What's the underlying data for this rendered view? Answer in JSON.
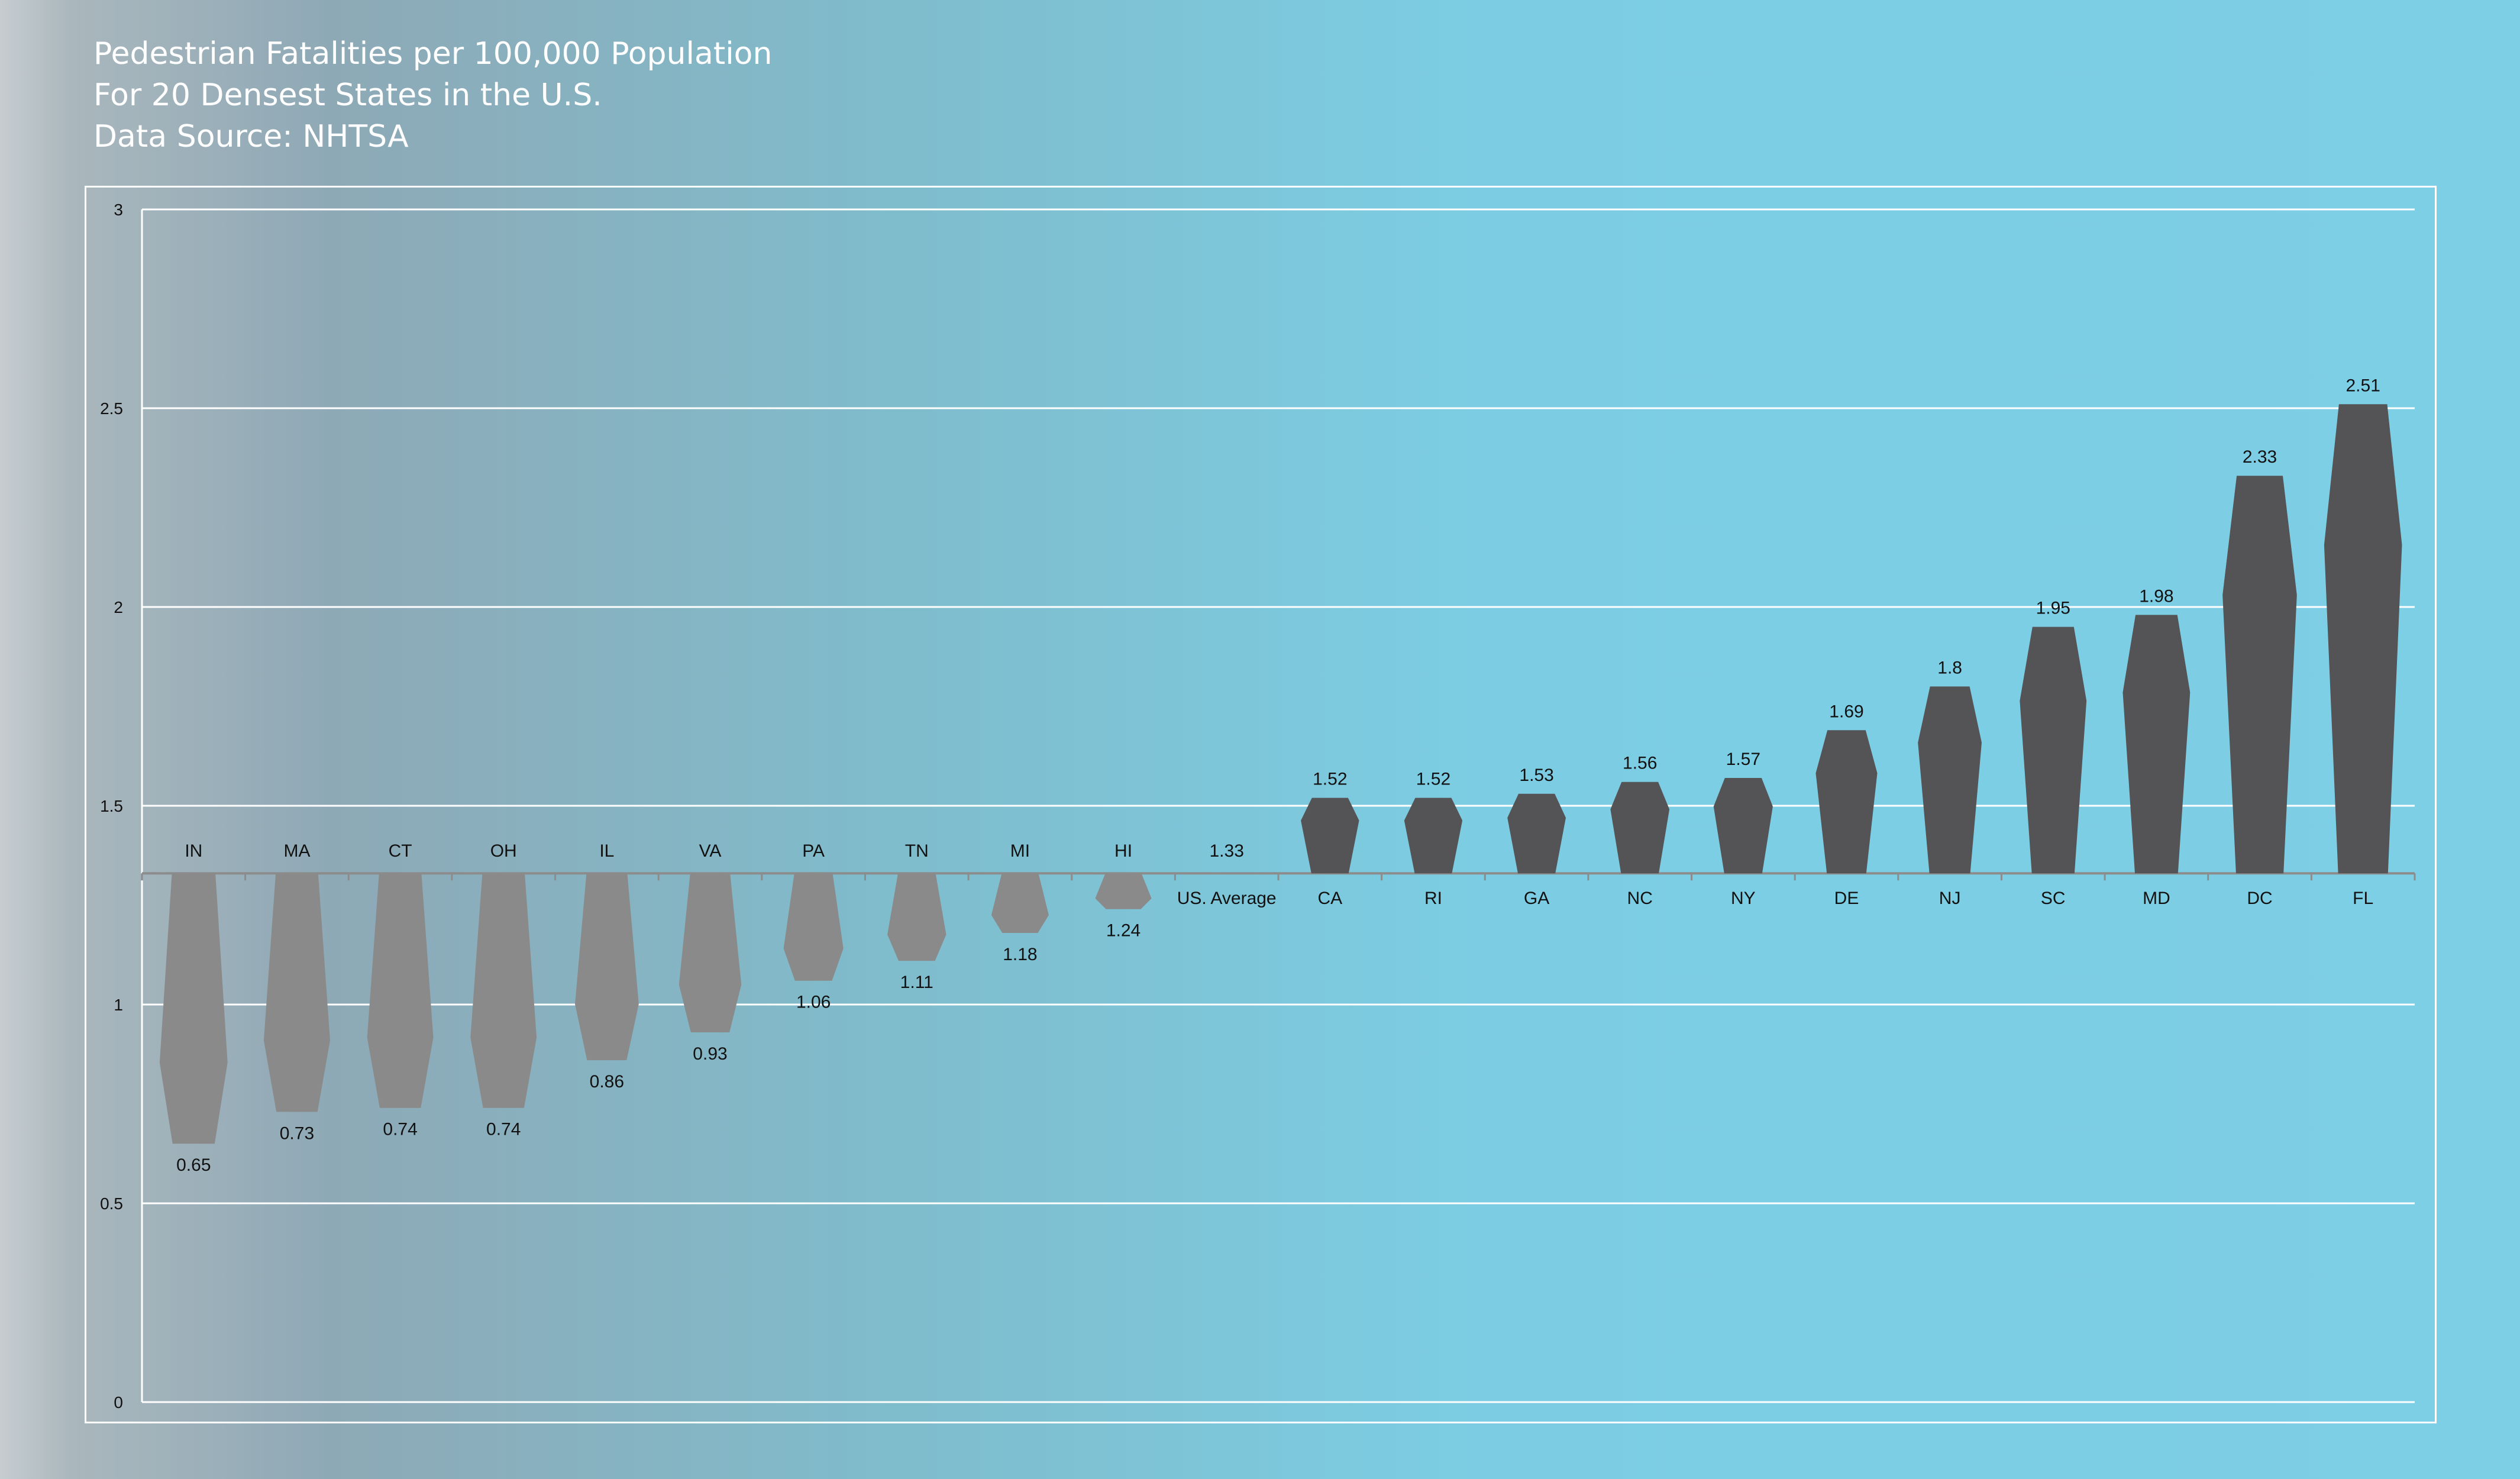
{
  "titles": {
    "line1": "Pedestrian Fatalities per 100,000 Population",
    "line2": "For 20 Densest States in the U.S.",
    "line3": "Data Source: NHTSA"
  },
  "colors": {
    "below_average": "#8a8a8a",
    "above_average": "#545356",
    "gridline": "#ffffff",
    "text": "#111111"
  },
  "chart_data": {
    "type": "bar",
    "title": "Pedestrian Fatalities per 100,000 Population",
    "baseline": 1.33,
    "baseline_label": "US. Average",
    "baseline_value_label": "1.33",
    "categories": [
      "IN",
      "MA",
      "CT",
      "OH",
      "IL",
      "VA",
      "PA",
      "TN",
      "MI",
      "HI",
      "US. Average",
      "CA",
      "RI",
      "GA",
      "NC",
      "NY",
      "DE",
      "NJ",
      "SC",
      "MD",
      "DC",
      "FL"
    ],
    "values": [
      0.65,
      0.73,
      0.74,
      0.74,
      0.86,
      0.93,
      1.06,
      1.11,
      1.18,
      1.24,
      1.33,
      1.52,
      1.52,
      1.53,
      1.56,
      1.57,
      1.69,
      1.8,
      1.95,
      1.98,
      2.33,
      2.51
    ],
    "value_labels": [
      "0.65",
      "0.73",
      "0.74",
      "0.74",
      "0.86",
      "0.93",
      "1.06",
      "1.11",
      "1.18",
      "1.24",
      "1.33",
      "1.52",
      "1.52",
      "1.53",
      "1.56",
      "1.57",
      "1.69",
      "1.8",
      "1.95",
      "1.98",
      "2.33",
      "2.51"
    ],
    "ylim": [
      0,
      3
    ],
    "yticks": [
      "0",
      "0.5",
      "1",
      "1.5",
      "2",
      "2.5",
      "3"
    ],
    "grid": true,
    "legend": "none"
  }
}
